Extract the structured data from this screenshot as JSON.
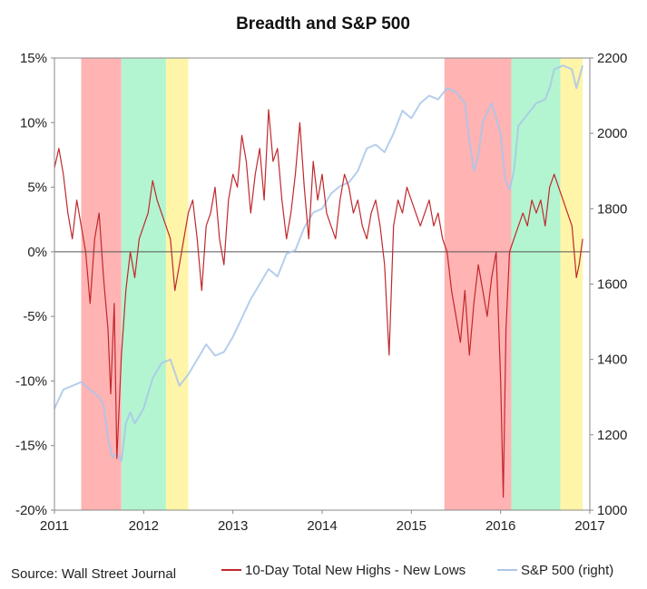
{
  "chart_data": {
    "type": "line",
    "title": "Breadth and S&P 500",
    "source": "Source: Wall Street Journal",
    "x_ticks": [
      "2011",
      "2012",
      "2013",
      "2014",
      "2015",
      "2016",
      "2017"
    ],
    "xlim": [
      2011.0,
      2017.0
    ],
    "y_left": {
      "ticks": [
        "15%",
        "10%",
        "5%",
        "0%",
        "-5%",
        "-10%",
        "-15%",
        "-20%"
      ],
      "ylim": [
        -20,
        15
      ]
    },
    "y_right": {
      "ticks": [
        "2200",
        "2000",
        "1800",
        "1600",
        "1400",
        "1200",
        "1000"
      ],
      "ylim": [
        1000,
        2200
      ]
    },
    "shaded_periods": [
      {
        "start": 2011.3,
        "end": 2011.75,
        "color": "#ffb3b3"
      },
      {
        "start": 2011.75,
        "end": 2012.25,
        "color": "#b3f5d0"
      },
      {
        "start": 2012.25,
        "end": 2012.5,
        "color": "#fff5a8"
      },
      {
        "start": 2015.37,
        "end": 2016.12,
        "color": "#ffb3b3"
      },
      {
        "start": 2016.12,
        "end": 2016.67,
        "color": "#b3f5d0"
      },
      {
        "start": 2016.67,
        "end": 2016.92,
        "color": "#fff5a8"
      }
    ],
    "series": [
      {
        "name": "10-Day Total New Highs - New Lows",
        "axis": "left",
        "color": "#c0282d",
        "x": [
          2011.0,
          2011.05,
          2011.1,
          2011.15,
          2011.2,
          2011.25,
          2011.3,
          2011.35,
          2011.4,
          2011.45,
          2011.5,
          2011.55,
          2011.6,
          2011.63,
          2011.67,
          2011.7,
          2011.75,
          2011.8,
          2011.85,
          2011.9,
          2011.95,
          2012.0,
          2012.05,
          2012.1,
          2012.15,
          2012.2,
          2012.25,
          2012.3,
          2012.35,
          2012.4,
          2012.45,
          2012.5,
          2012.55,
          2012.6,
          2012.65,
          2012.7,
          2012.75,
          2012.8,
          2012.85,
          2012.9,
          2012.95,
          2013.0,
          2013.05,
          2013.1,
          2013.15,
          2013.2,
          2013.25,
          2013.3,
          2013.35,
          2013.4,
          2013.45,
          2013.5,
          2013.55,
          2013.6,
          2013.65,
          2013.7,
          2013.75,
          2013.8,
          2013.85,
          2013.9,
          2013.95,
          2014.0,
          2014.05,
          2014.1,
          2014.15,
          2014.2,
          2014.25,
          2014.3,
          2014.35,
          2014.4,
          2014.45,
          2014.5,
          2014.55,
          2014.6,
          2014.65,
          2014.7,
          2014.75,
          2014.8,
          2014.85,
          2014.9,
          2014.95,
          2015.0,
          2015.05,
          2015.1,
          2015.15,
          2015.2,
          2015.25,
          2015.3,
          2015.35,
          2015.4,
          2015.45,
          2015.5,
          2015.55,
          2015.6,
          2015.65,
          2015.7,
          2015.75,
          2015.8,
          2015.85,
          2015.9,
          2015.95,
          2016.0,
          2016.03,
          2016.06,
          2016.1,
          2016.15,
          2016.2,
          2016.25,
          2016.3,
          2016.35,
          2016.4,
          2016.45,
          2016.5,
          2016.55,
          2016.6,
          2016.65,
          2016.7,
          2016.75,
          2016.8,
          2016.85,
          2016.88,
          2016.92
        ],
        "values": [
          6.5,
          8,
          6,
          3,
          1,
          4,
          2,
          0,
          -4,
          1,
          3,
          -2,
          -6,
          -11,
          -4,
          -16,
          -8,
          -3,
          0,
          -2,
          1,
          2,
          3,
          5.5,
          4,
          3,
          2,
          1,
          -3,
          -1,
          1,
          3,
          4,
          1,
          -3,
          2,
          3,
          5,
          1,
          -1,
          4,
          6,
          5,
          9,
          7,
          3,
          6,
          8,
          4,
          11,
          7,
          8,
          4,
          1,
          3,
          6,
          10,
          5,
          1,
          7,
          4,
          6,
          3,
          2,
          1,
          4,
          6,
          5,
          3,
          4,
          2,
          1,
          3,
          4,
          2,
          -1,
          -8,
          2,
          4,
          3,
          5,
          4,
          3,
          2,
          3,
          4,
          2,
          3,
          1,
          0,
          -3,
          -5,
          -7,
          -3,
          -8,
          -4,
          -1,
          -3,
          -5,
          -2,
          0,
          -10,
          -19,
          -6,
          0,
          1,
          2,
          3,
          2,
          4,
          3,
          4,
          2,
          5,
          6,
          5,
          4,
          3,
          2,
          -2,
          -1,
          1
        ]
      },
      {
        "name": "S&P 500 (right)",
        "axis": "right",
        "color": "#a9c6ea",
        "x": [
          2011.0,
          2011.1,
          2011.2,
          2011.3,
          2011.4,
          2011.5,
          2011.55,
          2011.6,
          2011.65,
          2011.7,
          2011.75,
          2011.8,
          2011.85,
          2011.9,
          2012.0,
          2012.1,
          2012.2,
          2012.3,
          2012.4,
          2012.5,
          2012.6,
          2012.7,
          2012.8,
          2012.9,
          2013.0,
          2013.1,
          2013.2,
          2013.3,
          2013.4,
          2013.5,
          2013.6,
          2013.7,
          2013.8,
          2013.9,
          2014.0,
          2014.1,
          2014.2,
          2014.3,
          2014.4,
          2014.5,
          2014.6,
          2014.7,
          2014.8,
          2014.9,
          2015.0,
          2015.1,
          2015.2,
          2015.3,
          2015.4,
          2015.5,
          2015.6,
          2015.65,
          2015.7,
          2015.75,
          2015.8,
          2015.9,
          2016.0,
          2016.05,
          2016.1,
          2016.15,
          2016.2,
          2016.3,
          2016.4,
          2016.5,
          2016.55,
          2016.6,
          2016.7,
          2016.8,
          2016.85,
          2016.92
        ],
        "values": [
          1270,
          1320,
          1330,
          1340,
          1320,
          1300,
          1280,
          1190,
          1140,
          1150,
          1130,
          1230,
          1260,
          1230,
          1270,
          1350,
          1390,
          1400,
          1330,
          1360,
          1400,
          1440,
          1410,
          1420,
          1460,
          1510,
          1560,
          1600,
          1640,
          1620,
          1680,
          1690,
          1750,
          1790,
          1800,
          1840,
          1860,
          1870,
          1900,
          1960,
          1970,
          1950,
          2000,
          2060,
          2040,
          2080,
          2100,
          2090,
          2120,
          2110,
          2080,
          1980,
          1900,
          1940,
          2030,
          2080,
          2000,
          1880,
          1850,
          1900,
          2020,
          2050,
          2080,
          2090,
          2120,
          2170,
          2180,
          2170,
          2120,
          2180
        ]
      }
    ]
  }
}
